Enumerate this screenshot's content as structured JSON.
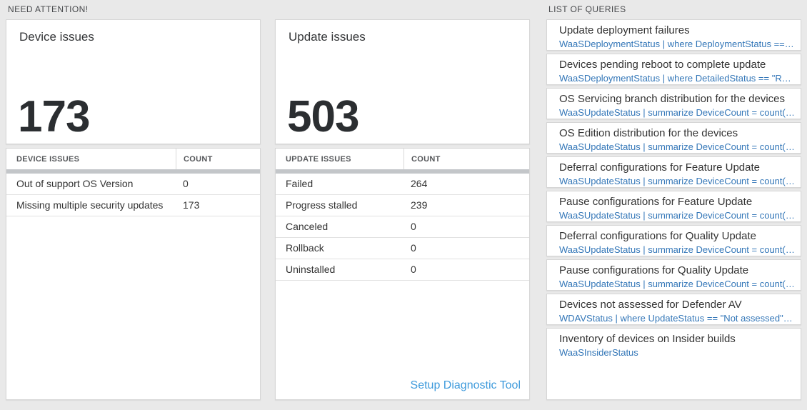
{
  "colors": {
    "page_bg": "#e9e9e9",
    "query_link_blue": "#3477b8",
    "setup_link_blue": "#3f9bdc",
    "thick_bar_gray": "#c3c6c9"
  },
  "need_attention": {
    "header": "NEED ATTENTION!",
    "device_card": {
      "title": "Device issues",
      "count": "173"
    },
    "device_table": {
      "header_issue": "DEVICE ISSUES",
      "header_count": "COUNT",
      "rows": [
        {
          "label": "Out of support OS Version",
          "count": "0"
        },
        {
          "label": "Missing multiple security updates",
          "count": "173"
        }
      ]
    },
    "update_card": {
      "title": "Update issues",
      "count": "503"
    },
    "update_table": {
      "header_issue": "UPDATE ISSUES",
      "header_count": "COUNT",
      "rows": [
        {
          "label": "Failed",
          "count": "264"
        },
        {
          "label": "Progress stalled",
          "count": "239"
        },
        {
          "label": "Canceled",
          "count": "0"
        },
        {
          "label": "Rollback",
          "count": "0"
        },
        {
          "label": "Uninstalled",
          "count": "0"
        }
      ],
      "footer_link": "Setup Diagnostic Tool"
    }
  },
  "queries": {
    "header": "LIST OF QUERIES",
    "items": [
      {
        "title": "Update deployment failures",
        "query": "WaaSDeploymentStatus | where DeploymentStatus == \"Failed\" |..."
      },
      {
        "title": "Devices pending reboot to complete update",
        "query": "WaaSDeploymentStatus | where DetailedStatus == \"Reboot pend..."
      },
      {
        "title": "OS Servicing branch distribution for the devices",
        "query": "WaaSUpdateStatus | summarize DeviceCount = count() by OSSer..."
      },
      {
        "title": "OS Edition distribution for the devices",
        "query": "WaaSUpdateStatus | summarize DeviceCount = count() by OSEdit..."
      },
      {
        "title": "Deferral configurations for Feature Update",
        "query": "WaaSUpdateStatus | summarize DeviceCount = count() by Featur..."
      },
      {
        "title": "Pause configurations for Feature Update",
        "query": "WaaSUpdateStatus | summarize DeviceCount = count() by Featur..."
      },
      {
        "title": "Deferral configurations for Quality Update",
        "query": "WaaSUpdateStatus | summarize DeviceCount = count() by Qualit..."
      },
      {
        "title": "Pause configurations for Quality Update",
        "query": "WaaSUpdateStatus | summarize DeviceCount = count() by Qualit..."
      },
      {
        "title": "Devices not assessed for Defender AV",
        "query": "WDAVStatus | where UpdateStatus == \"Not assessed\" | render ta..."
      },
      {
        "title": "Inventory of devices on Insider builds",
        "query": "WaaSInsiderStatus"
      }
    ]
  }
}
